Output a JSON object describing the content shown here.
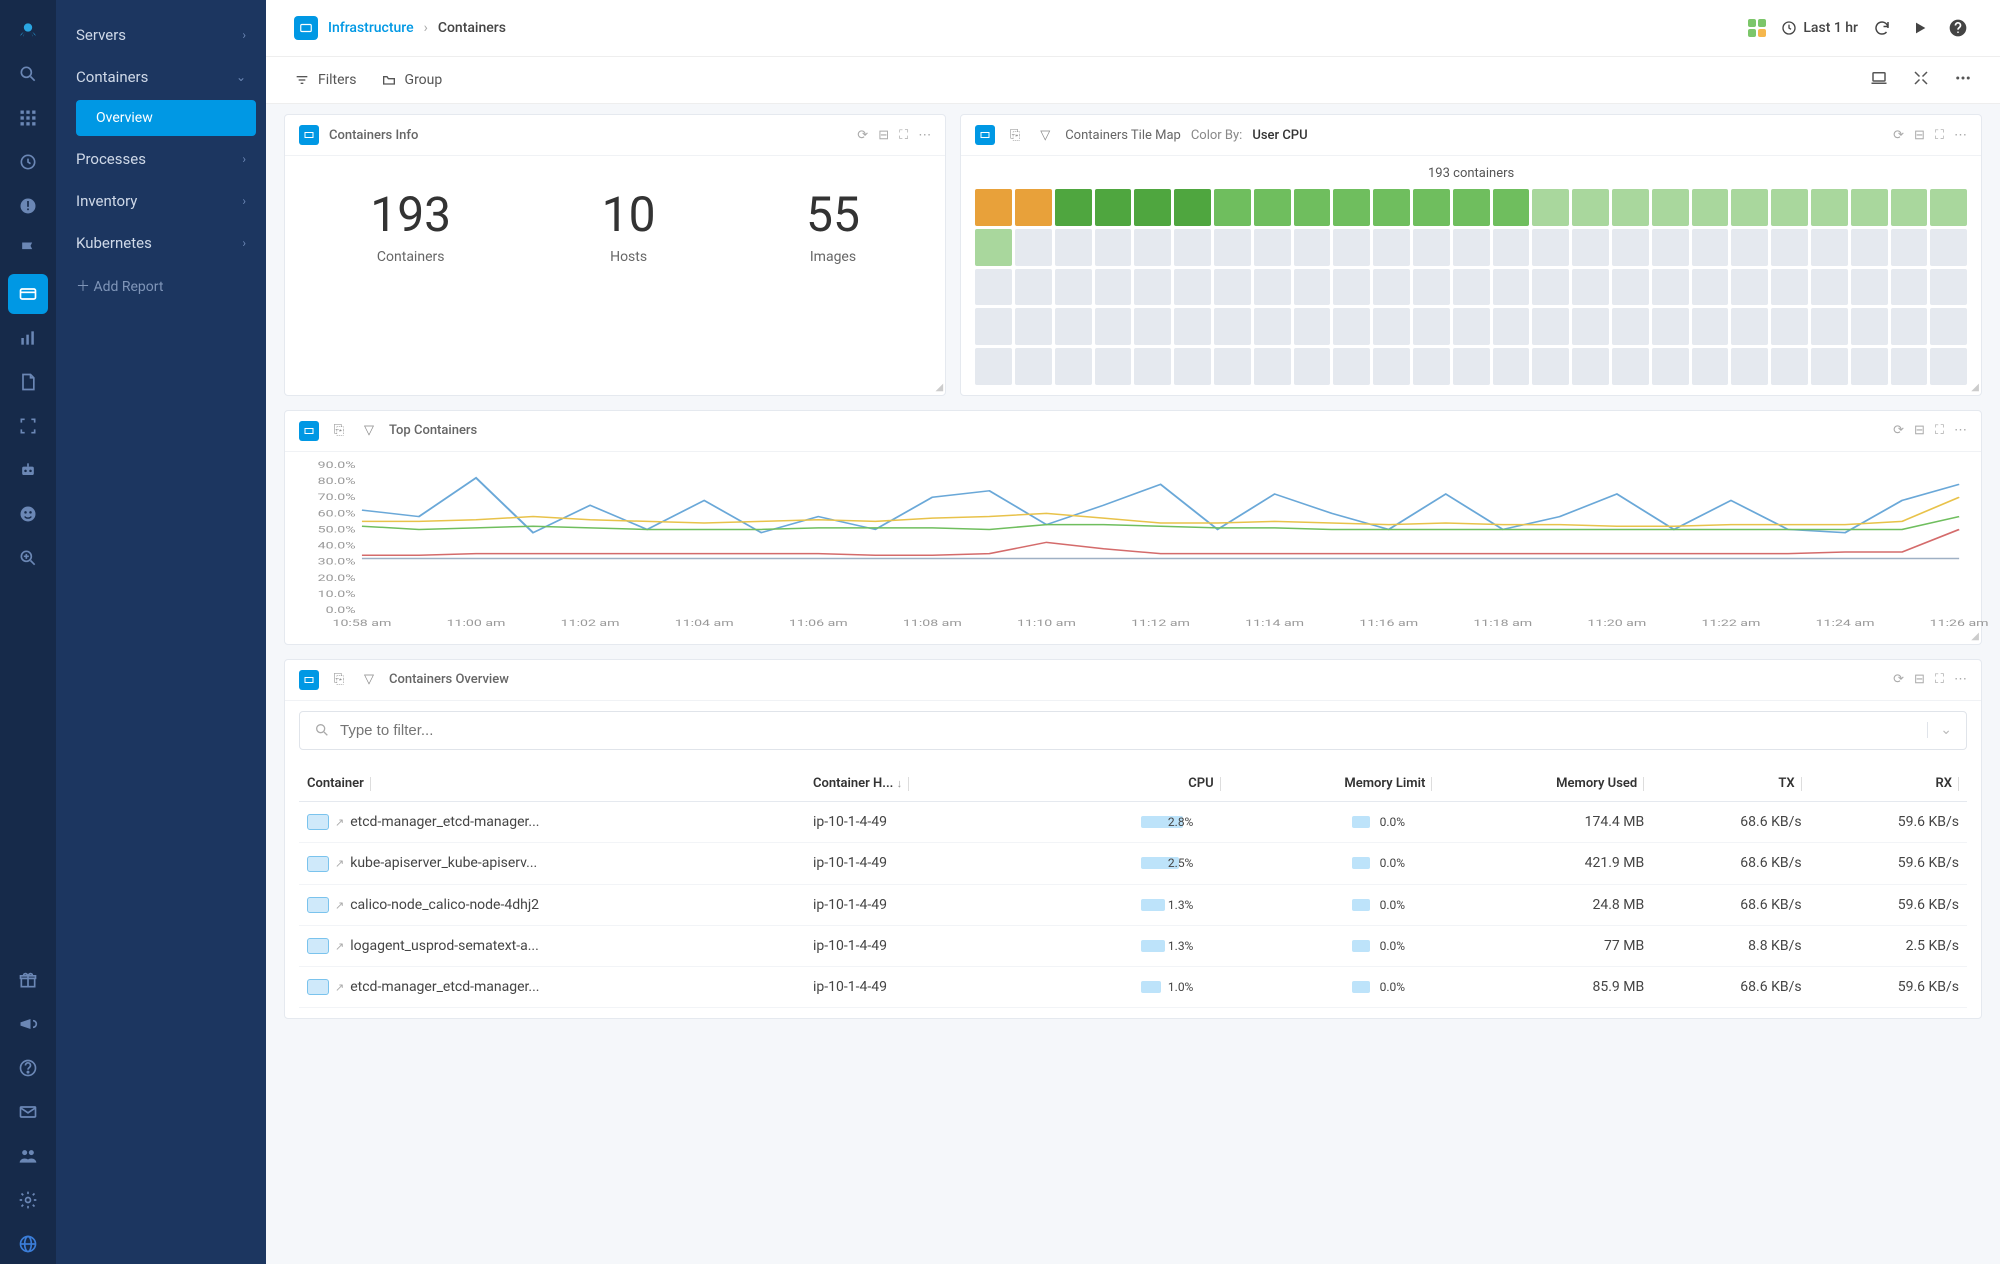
{
  "colors": {
    "brand": "#0098e4",
    "rail_bg": "#162a4a",
    "nav_bg": "#1c3660",
    "panel_border": "#e5e9ef",
    "grid4": [
      "#7cc66a",
      "#7cc66a",
      "#7cc66a",
      "#f5b74d"
    ]
  },
  "breadcrumb": {
    "link": "Infrastructure",
    "current": "Containers"
  },
  "time_range": "Last 1 hr",
  "toolbar": {
    "filters": "Filters",
    "group": "Group"
  },
  "side_nav": {
    "items": [
      {
        "label": "Servers",
        "chev": "›"
      },
      {
        "label": "Containers",
        "chev": "⌄",
        "expanded": true,
        "children": [
          {
            "label": "Overview",
            "active": true
          }
        ]
      },
      {
        "label": "Processes",
        "chev": "›"
      },
      {
        "label": "Inventory",
        "chev": "›"
      },
      {
        "label": "Kubernetes",
        "chev": "›"
      }
    ],
    "add_report": "Add Report"
  },
  "panels": {
    "info": {
      "title": "Containers Info",
      "stats": [
        {
          "value": "193",
          "label": "Containers"
        },
        {
          "value": "10",
          "label": "Hosts"
        },
        {
          "value": "55",
          "label": "Images"
        }
      ]
    },
    "tilemap": {
      "title": "Containers Tile Map",
      "color_by_label": "Color By:",
      "color_by_value": "User CPU",
      "caption": "193 containers",
      "rows": 5,
      "cols": 25,
      "total": 125,
      "tile_colors": {
        "orange": "#e8a13a",
        "green_d": "#4fa63f",
        "green_m": "#6fbe5e",
        "green_l": "#a9d79d",
        "grey": "#e5e9ef"
      },
      "tiles": [
        "orange",
        "orange",
        "green_d",
        "green_d",
        "green_d",
        "green_d",
        "green_m",
        "green_m",
        "green_m",
        "green_m",
        "green_m",
        "green_m",
        "green_m",
        "green_m",
        "green_l",
        "green_l",
        "green_l",
        "green_l",
        "green_l",
        "green_l",
        "green_l",
        "green_l",
        "green_l",
        "green_l",
        "green_l",
        "green_l",
        "grey",
        "grey",
        "grey",
        "grey",
        "grey",
        "grey",
        "grey",
        "grey",
        "grey",
        "grey",
        "grey",
        "grey",
        "grey",
        "grey",
        "grey",
        "grey",
        "grey",
        "grey",
        "grey",
        "grey",
        "grey",
        "grey",
        "grey",
        "grey",
        "grey",
        "grey",
        "grey",
        "grey",
        "grey",
        "grey",
        "grey",
        "grey",
        "grey",
        "grey",
        "grey",
        "grey",
        "grey",
        "grey",
        "grey",
        "grey",
        "grey",
        "grey",
        "grey",
        "grey",
        "grey",
        "grey",
        "grey",
        "grey",
        "grey",
        "grey",
        "grey",
        "grey",
        "grey",
        "grey",
        "grey",
        "grey",
        "grey",
        "grey",
        "grey",
        "grey",
        "grey",
        "grey",
        "grey",
        "grey",
        "grey",
        "grey",
        "grey",
        "grey",
        "grey",
        "grey",
        "grey",
        "grey",
        "grey",
        "grey",
        "grey",
        "grey",
        "grey",
        "grey",
        "grey",
        "grey",
        "grey",
        "grey",
        "grey",
        "grey",
        "grey",
        "grey",
        "grey",
        "grey",
        "grey",
        "grey",
        "grey",
        "grey",
        "grey",
        "grey",
        "grey",
        "grey",
        "grey",
        "grey",
        "grey"
      ]
    },
    "top_containers": {
      "title": "Top Containers",
      "y_labels": [
        "90.0%",
        "80.0%",
        "70.0%",
        "60.0%",
        "50.0%",
        "40.0%",
        "30.0%",
        "20.0%",
        "10.0%",
        "0.0%"
      ],
      "x_labels": [
        "10:58 am",
        "11:00 am",
        "11:02 am",
        "11:04 am",
        "11:06 am",
        "11:08 am",
        "11:10 am",
        "11:12 am",
        "11:14 am",
        "11:16 am",
        "11:18 am",
        "11:20 am",
        "11:22 am",
        "11:24 am",
        "11:26 am"
      ],
      "ylim": [
        0,
        90
      ],
      "series": [
        {
          "color": "#6aa8d8",
          "values": [
            62,
            58,
            82,
            48,
            65,
            50,
            68,
            48,
            58,
            50,
            70,
            74,
            53,
            65,
            78,
            50,
            72,
            60,
            50,
            72,
            50,
            58,
            72,
            50,
            68,
            50,
            48,
            68,
            78
          ]
        },
        {
          "color": "#e8c24a",
          "values": [
            55,
            55,
            56,
            58,
            56,
            55,
            54,
            55,
            56,
            55,
            57,
            58,
            60,
            57,
            54,
            54,
            55,
            54,
            53,
            54,
            53,
            53,
            52,
            52,
            53,
            53,
            53,
            55,
            70
          ]
        },
        {
          "color": "#6fbe5e",
          "values": [
            52,
            50,
            51,
            52,
            51,
            50,
            50,
            50,
            51,
            51,
            51,
            50,
            53,
            53,
            52,
            51,
            51,
            50,
            50,
            50,
            50,
            50,
            50,
            50,
            50,
            50,
            50,
            50,
            58
          ]
        },
        {
          "color": "#d46b6b",
          "values": [
            34,
            34,
            35,
            35,
            35,
            35,
            35,
            35,
            35,
            34,
            34,
            35,
            42,
            38,
            35,
            35,
            35,
            35,
            35,
            35,
            35,
            35,
            35,
            35,
            35,
            35,
            36,
            36,
            50
          ]
        },
        {
          "color": "#9fb0c4",
          "values": [
            32,
            32,
            32,
            32,
            32,
            32,
            32,
            32,
            32,
            32,
            32,
            32,
            32,
            32,
            32,
            32,
            32,
            32,
            32,
            32,
            32,
            32,
            32,
            32,
            32,
            32,
            32,
            32,
            32
          ]
        }
      ]
    },
    "overview": {
      "title": "Containers Overview",
      "filter_placeholder": "Type to filter...",
      "columns": [
        "Container",
        "Container H...",
        "CPU",
        "Memory Limit",
        "Memory Used",
        "TX",
        "RX"
      ],
      "sort_col": 1,
      "rows": [
        {
          "container": "etcd-manager_etcd-manager...",
          "host": "ip-10-1-4-49",
          "cpu": "2.8%",
          "cpu_w": 42,
          "mem_limit": "0.0%",
          "mem_limit_w": 18,
          "mem_used": "174.4 MB",
          "tx": "68.6 KB/s",
          "rx": "59.6 KB/s"
        },
        {
          "container": "kube-apiserver_kube-apiserv...",
          "host": "ip-10-1-4-49",
          "cpu": "2.5%",
          "cpu_w": 38,
          "mem_limit": "0.0%",
          "mem_limit_w": 18,
          "mem_used": "421.9 MB",
          "tx": "68.6 KB/s",
          "rx": "59.6 KB/s"
        },
        {
          "container": "calico-node_calico-node-4dhj2",
          "host": "ip-10-1-4-49",
          "cpu": "1.3%",
          "cpu_w": 24,
          "mem_limit": "0.0%",
          "mem_limit_w": 18,
          "mem_used": "24.8 MB",
          "tx": "68.6 KB/s",
          "rx": "59.6 KB/s"
        },
        {
          "container": "logagent_usprod-sematext-a...",
          "host": "ip-10-1-4-49",
          "cpu": "1.3%",
          "cpu_w": 24,
          "mem_limit": "0.0%",
          "mem_limit_w": 18,
          "mem_used": "77 MB",
          "tx": "8.8 KB/s",
          "rx": "2.5 KB/s"
        },
        {
          "container": "etcd-manager_etcd-manager...",
          "host": "ip-10-1-4-49",
          "cpu": "1.0%",
          "cpu_w": 20,
          "mem_limit": "0.0%",
          "mem_limit_w": 18,
          "mem_used": "85.9 MB",
          "tx": "68.6 KB/s",
          "rx": "59.6 KB/s"
        }
      ]
    }
  }
}
